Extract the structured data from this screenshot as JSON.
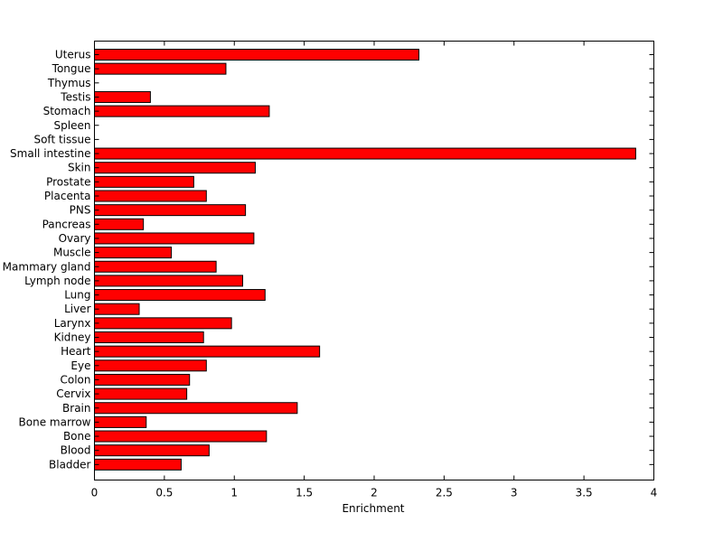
{
  "chart_data": {
    "type": "bar",
    "orientation": "horizontal",
    "title": "",
    "xlabel": "Enrichment",
    "ylabel": "",
    "xlim": [
      0,
      4
    ],
    "xticks": [
      "0",
      "0.5",
      "1",
      "1.5",
      "2",
      "2.5",
      "3",
      "3.5",
      "4"
    ],
    "grid": false,
    "bar_color": "#ff0000",
    "categories": [
      "Uterus",
      "Tongue",
      "Thymus",
      "Testis",
      "Stomach",
      "Spleen",
      "Soft tissue",
      "Small intestine",
      "Skin",
      "Prostate",
      "Placenta",
      "PNS",
      "Pancreas",
      "Ovary",
      "Muscle",
      "Mammary gland",
      "Lymph node",
      "Lung",
      "Liver",
      "Larynx",
      "Kidney",
      "Heart",
      "Eye",
      "Colon",
      "Cervix",
      "Brain",
      "Bone marrow",
      "Bone",
      "Blood",
      "Bladder"
    ],
    "values": [
      2.32,
      0.94,
      0,
      0.4,
      1.25,
      0,
      0,
      3.87,
      1.15,
      0.71,
      0.8,
      1.08,
      0.35,
      1.14,
      0.55,
      0.87,
      1.06,
      1.22,
      0.32,
      0.98,
      0.78,
      1.61,
      0.8,
      0.68,
      0.66,
      1.45,
      0.37,
      1.23,
      0.82,
      0.62
    ]
  }
}
